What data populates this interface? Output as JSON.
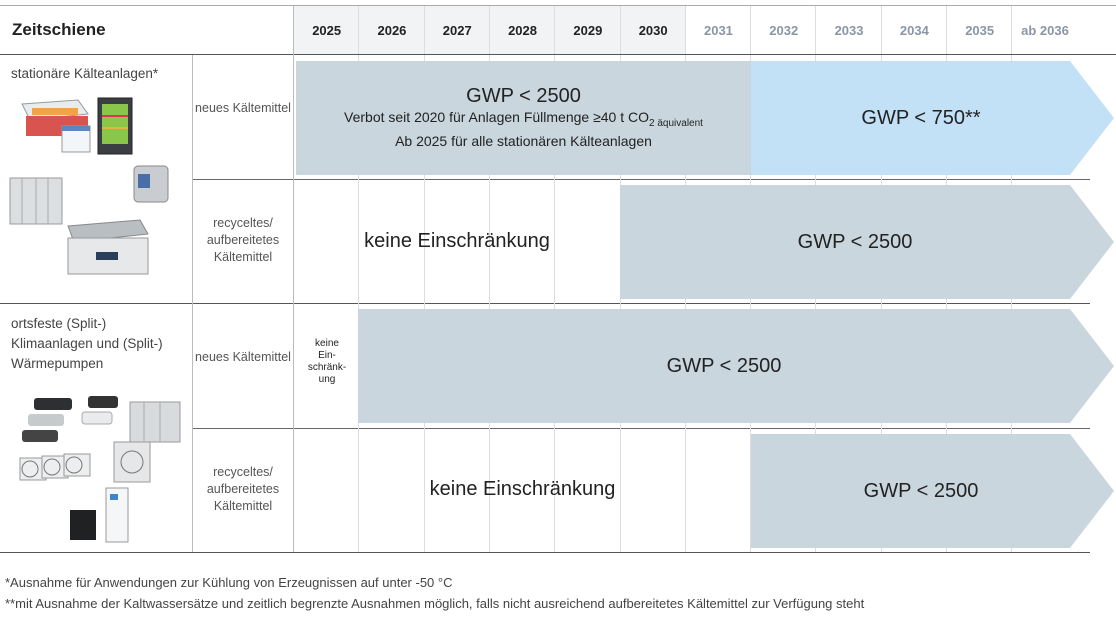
{
  "header": {
    "title": "Zeitschiene",
    "years": [
      {
        "label": "2025",
        "dim": false
      },
      {
        "label": "2026",
        "dim": false
      },
      {
        "label": "2027",
        "dim": false
      },
      {
        "label": "2028",
        "dim": false
      },
      {
        "label": "2029",
        "dim": false
      },
      {
        "label": "2030",
        "dim": false
      },
      {
        "label": "2031",
        "dim": true
      },
      {
        "label": "2032",
        "dim": true
      },
      {
        "label": "2033",
        "dim": true
      },
      {
        "label": "2034",
        "dim": true
      },
      {
        "label": "2035",
        "dim": true
      },
      {
        "label": "ab 2036",
        "dim": true
      }
    ]
  },
  "categories": {
    "stationary": "stationäre Kälteanlagen*",
    "split": "ortsfeste (Split-) Klimaanlagen und (Split-) Wärmepumpen"
  },
  "subrows": {
    "new": "neues Kältemittel",
    "recycled": "recyceltes/ aufbereitetes Kältemittel"
  },
  "row1": {
    "gwp": "GWP < 2500",
    "line1_main": "Verbot seit 2020 für Anlagen Füllmenge ≥40 t CO",
    "line1_sub": "2 äquivalent",
    "line2": "Ab 2025 für alle stationären Kälteanlagen",
    "gwp_after": "GWP < 750**",
    "colors": {
      "grey": "#c9d6de",
      "blue": "#c2e0f6"
    }
  },
  "row2": {
    "free": "keine Einschränkung",
    "gwp": "GWP < 2500"
  },
  "row3": {
    "free_l1": "keine",
    "free_l2": "Ein-",
    "free_l3": "schränk-",
    "free_l4": "ung",
    "gwp": "GWP < 2500"
  },
  "row4": {
    "free": "keine Einschränkung",
    "gwp": "GWP < 2500"
  },
  "footnotes": {
    "f1": "*Ausnahme für Anwendungen zur Kühlung von Erzeugnissen auf unter -50 °C",
    "f2": "**mit Ausnahme der Kaltwassersätze und zeitlich begrenzte Ausnahmen möglich, falls nicht ausreichend aufbereitetes Kältemittel zur Verfügung steht"
  }
}
